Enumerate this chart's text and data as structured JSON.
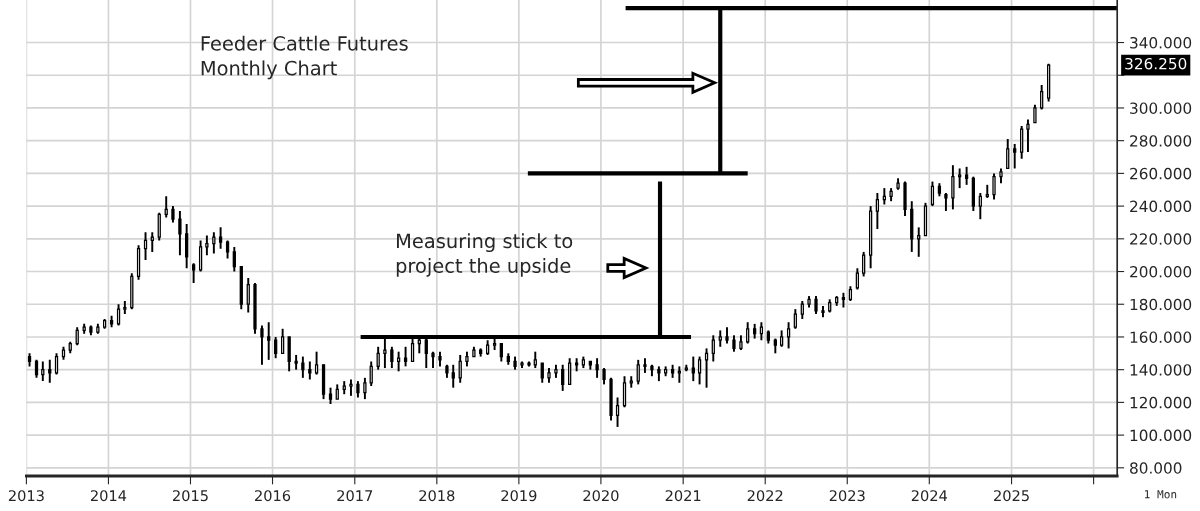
{
  "chart_data": {
    "type": "candlestick",
    "title": "Feeder Cattle Futures\nMonthly Chart",
    "color": "#000000",
    "x": [
      "2013-01-15",
      "2013-02-15",
      "2013-03-15",
      "2013-04-15",
      "2013-05-15",
      "2013-06-15",
      "2013-07-15",
      "2013-08-15",
      "2013-09-15",
      "2013-10-15",
      "2013-11-15",
      "2013-12-15",
      "2014-01-15",
      "2014-02-15",
      "2014-03-15",
      "2014-04-15",
      "2014-05-15",
      "2014-06-15",
      "2014-07-15",
      "2014-08-15",
      "2014-09-15",
      "2014-10-15",
      "2014-11-15",
      "2014-12-15",
      "2015-01-15",
      "2015-02-15",
      "2015-03-15",
      "2015-04-15",
      "2015-05-15",
      "2015-06-15",
      "2015-07-15",
      "2015-08-15",
      "2015-09-15",
      "2015-10-15",
      "2015-11-15",
      "2015-12-15",
      "2016-01-15",
      "2016-02-15",
      "2016-03-15",
      "2016-04-15",
      "2016-05-15",
      "2016-06-15",
      "2016-07-15",
      "2016-08-15",
      "2016-09-15",
      "2016-10-15",
      "2016-11-15",
      "2016-12-15",
      "2017-01-15",
      "2017-02-15",
      "2017-03-15",
      "2017-04-15",
      "2017-05-15",
      "2017-06-15",
      "2017-07-15",
      "2017-08-15",
      "2017-09-15",
      "2017-10-15",
      "2017-11-15",
      "2017-12-15",
      "2018-01-15",
      "2018-02-15",
      "2018-03-15",
      "2018-04-15",
      "2018-05-15",
      "2018-06-15",
      "2018-07-15",
      "2018-08-15",
      "2018-09-15",
      "2018-10-15",
      "2018-11-15",
      "2018-12-15",
      "2019-01-15",
      "2019-02-15",
      "2019-03-15",
      "2019-04-15",
      "2019-05-15",
      "2019-06-15",
      "2019-07-15",
      "2019-08-15",
      "2019-09-15",
      "2019-10-15",
      "2019-11-15",
      "2019-12-15",
      "2020-01-15",
      "2020-02-15",
      "2020-03-15",
      "2020-04-15",
      "2020-05-15",
      "2020-06-15",
      "2020-07-15",
      "2020-08-15",
      "2020-09-15",
      "2020-10-15",
      "2020-11-15",
      "2020-12-15",
      "2021-01-15",
      "2021-02-15",
      "2021-03-15",
      "2021-04-15",
      "2021-05-15",
      "2021-06-15",
      "2021-07-15",
      "2021-08-15",
      "2021-09-15",
      "2021-10-15",
      "2021-11-15",
      "2021-12-15",
      "2022-01-15",
      "2022-02-15",
      "2022-03-15",
      "2022-04-15",
      "2022-05-15",
      "2022-06-15",
      "2022-07-15",
      "2022-08-15",
      "2022-09-15",
      "2022-10-15",
      "2022-11-15",
      "2022-12-15",
      "2023-01-15",
      "2023-02-15",
      "2023-03-15",
      "2023-04-15",
      "2023-05-15",
      "2023-06-15",
      "2023-07-15",
      "2023-08-15",
      "2023-09-15",
      "2023-10-15",
      "2023-11-15",
      "2023-12-15",
      "2024-01-15",
      "2024-02-15",
      "2024-03-15",
      "2024-04-15",
      "2024-05-15",
      "2024-06-15",
      "2024-07-15",
      "2024-08-15",
      "2024-09-15",
      "2024-10-15",
      "2024-11-15",
      "2024-12-15",
      "2025-01-15",
      "2025-02-15",
      "2025-03-15",
      "2025-04-15",
      "2025-05-15",
      "2025-06-15"
    ],
    "ohlc": [
      [
        148,
        150,
        142,
        145
      ],
      [
        145,
        146,
        135,
        137
      ],
      [
        137,
        145,
        133,
        140
      ],
      [
        140,
        146,
        132,
        138
      ],
      [
        138,
        150,
        137,
        148
      ],
      [
        148,
        154,
        146,
        152
      ],
      [
        152,
        157,
        150,
        156
      ],
      [
        156,
        166,
        155,
        164
      ],
      [
        164,
        168,
        162,
        166
      ],
      [
        166,
        167,
        161,
        163
      ],
      [
        163,
        168,
        162,
        166
      ],
      [
        166,
        171,
        165,
        170
      ],
      [
        170,
        173,
        166,
        168
      ],
      [
        168,
        180,
        167,
        177
      ],
      [
        177,
        182,
        174,
        178
      ],
      [
        178,
        199,
        177,
        197
      ],
      [
        197,
        216,
        195,
        214
      ],
      [
        214,
        224,
        207,
        219
      ],
      [
        219,
        224,
        212,
        221
      ],
      [
        221,
        236,
        219,
        235
      ],
      [
        235,
        246,
        233,
        238
      ],
      [
        238,
        240,
        230,
        232
      ],
      [
        232,
        237,
        210,
        223
      ],
      [
        223,
        229,
        202,
        209
      ],
      [
        204,
        205,
        193,
        201
      ],
      [
        201,
        219,
        200,
        215
      ],
      [
        215,
        222,
        210,
        217
      ],
      [
        217,
        224,
        211,
        221
      ],
      [
        221,
        227,
        214,
        218
      ],
      [
        218,
        219,
        208,
        212
      ],
      [
        212,
        215,
        200,
        203
      ],
      [
        203,
        203,
        177,
        180
      ],
      [
        180,
        196,
        175,
        192
      ],
      [
        192,
        193,
        162,
        165
      ],
      [
        165,
        167,
        143,
        160
      ],
      [
        160,
        169,
        146,
        158
      ],
      [
        158,
        160,
        147,
        150
      ],
      [
        150,
        165,
        150,
        160
      ],
      [
        160,
        160,
        139,
        145
      ],
      [
        145,
        149,
        140,
        144
      ],
      [
        144,
        148,
        135,
        140
      ],
      [
        140,
        145,
        134,
        138
      ],
      [
        138,
        151,
        137,
        143
      ],
      [
        143,
        143,
        122,
        125
      ],
      [
        125,
        129,
        119,
        122
      ],
      [
        122,
        131,
        122,
        128
      ],
      [
        128,
        133,
        125,
        130
      ],
      [
        130,
        134,
        124,
        131
      ],
      [
        131,
        133,
        123,
        126
      ],
      [
        126,
        135,
        122,
        132
      ],
      [
        132,
        145,
        130,
        142
      ],
      [
        142,
        154,
        140,
        150
      ],
      [
        150,
        159,
        141,
        152
      ],
      [
        152,
        154,
        141,
        145
      ],
      [
        145,
        151,
        139,
        147
      ],
      [
        147,
        154,
        142,
        145
      ],
      [
        145,
        159,
        145,
        156
      ],
      [
        156,
        160,
        150,
        158
      ],
      [
        158,
        159,
        141,
        150
      ],
      [
        150,
        151,
        141,
        148
      ],
      [
        148,
        151,
        142,
        146
      ],
      [
        142,
        143,
        135,
        138
      ],
      [
        138,
        143,
        129,
        135
      ],
      [
        135,
        149,
        132,
        145
      ],
      [
        145,
        151,
        142,
        148
      ],
      [
        148,
        154,
        148,
        152
      ],
      [
        152,
        153,
        148,
        150
      ],
      [
        150,
        158,
        149,
        155
      ],
      [
        155,
        159,
        152,
        156
      ],
      [
        156,
        156,
        145,
        148
      ],
      [
        148,
        150,
        143,
        145
      ],
      [
        145,
        148,
        140,
        142
      ],
      [
        143,
        145,
        141,
        144
      ],
      [
        144,
        145,
        142,
        143
      ],
      [
        143,
        151,
        141,
        146
      ],
      [
        144,
        144,
        132,
        135
      ],
      [
        135,
        141,
        132,
        138
      ],
      [
        138,
        143,
        135,
        140
      ],
      [
        140,
        143,
        127,
        131
      ],
      [
        131,
        147,
        131,
        144
      ],
      [
        144,
        147,
        139,
        143
      ],
      [
        143,
        148,
        141,
        146
      ],
      [
        145,
        145,
        140,
        143
      ],
      [
        143,
        147,
        135,
        140
      ],
      [
        140,
        141,
        131,
        134
      ],
      [
        134,
        135,
        109,
        112
      ],
      [
        112,
        123,
        105,
        118
      ],
      [
        118,
        136,
        117,
        132
      ],
      [
        132,
        136,
        129,
        133
      ],
      [
        133,
        146,
        131,
        143
      ],
      [
        143,
        147,
        138,
        142
      ],
      [
        142,
        143,
        136,
        140
      ],
      [
        140,
        142,
        133,
        138
      ],
      [
        138,
        142,
        136,
        140
      ],
      [
        140,
        143,
        135,
        138
      ],
      [
        138,
        142,
        132,
        139
      ],
      [
        140,
        143,
        139,
        141
      ],
      [
        141,
        148,
        133,
        138
      ],
      [
        138,
        148,
        131,
        146
      ],
      [
        146,
        153,
        129,
        150
      ],
      [
        150,
        161,
        145,
        158
      ],
      [
        158,
        164,
        154,
        160
      ],
      [
        160,
        166,
        156,
        158
      ],
      [
        158,
        161,
        151,
        153
      ],
      [
        153,
        161,
        152,
        157
      ],
      [
        157,
        169,
        156,
        165
      ],
      [
        165,
        168,
        159,
        162
      ],
      [
        162,
        169,
        158,
        166
      ],
      [
        163,
        164,
        156,
        158
      ],
      [
        158,
        159,
        150,
        155
      ],
      [
        155,
        164,
        154,
        160
      ],
      [
        160,
        169,
        153,
        165
      ],
      [
        166,
        177,
        165,
        174
      ],
      [
        174,
        182,
        171,
        180
      ],
      [
        180,
        185,
        178,
        183
      ],
      [
        183,
        185,
        174,
        176
      ],
      [
        176,
        179,
        172,
        175
      ],
      [
        176,
        183,
        175,
        181
      ],
      [
        181,
        185,
        179,
        184
      ],
      [
        184,
        187,
        178,
        183
      ],
      [
        183,
        191,
        182,
        189
      ],
      [
        190,
        202,
        189,
        199
      ],
      [
        199,
        212,
        197,
        210
      ],
      [
        210,
        240,
        202,
        237
      ],
      [
        237,
        248,
        226,
        244
      ],
      [
        244,
        251,
        241,
        246
      ],
      [
        246,
        251,
        243,
        249
      ],
      [
        251,
        257,
        250,
        254
      ],
      [
        254,
        255,
        234,
        238
      ],
      [
        238,
        243,
        212,
        220
      ],
      [
        220,
        227,
        209,
        222
      ],
      [
        222,
        242,
        222,
        240
      ],
      [
        241,
        255,
        240,
        252
      ],
      [
        252,
        254,
        246,
        248
      ],
      [
        247,
        248,
        237,
        245
      ],
      [
        245,
        265,
        238,
        258
      ],
      [
        258,
        263,
        251,
        259
      ],
      [
        259,
        264,
        253,
        257
      ],
      [
        257,
        258,
        237,
        240
      ],
      [
        240,
        248,
        232,
        246
      ],
      [
        246,
        253,
        245,
        247
      ],
      [
        247,
        260,
        244,
        258
      ],
      [
        258,
        263,
        254,
        261
      ],
      [
        263,
        281,
        263,
        275
      ],
      [
        275,
        278,
        263,
        273
      ],
      [
        273,
        289,
        269,
        287
      ],
      [
        287,
        293,
        273,
        290
      ],
      [
        291,
        302,
        291,
        300
      ],
      [
        300,
        314,
        299,
        310
      ],
      [
        306,
        327,
        304,
        326.25
      ]
    ],
    "series": [
      {
        "type": "line",
        "x": [
          "2017-01-27",
          "2021-02-05"
        ],
        "values": [
          160,
          160
        ],
        "color": "#000000"
      },
      {
        "type": "line",
        "x": [
          "2020-09-20",
          "2020-09-20"
        ],
        "values": [
          160,
          255
        ],
        "color": "#000000"
      },
      {
        "type": "line",
        "x": [
          "2019-02-10",
          "2021-10-15"
        ],
        "values": [
          260,
          260
        ],
        "color": "#000000"
      },
      {
        "type": "line",
        "x": [
          "2021-06-15",
          "2021-06-15"
        ],
        "values": [
          260,
          361
        ],
        "color": "#000000"
      },
      {
        "type": "line",
        "x": [
          "2020-04-20",
          "2026-04-16"
        ],
        "values": [
          361,
          361
        ],
        "color": "#000000"
      }
    ],
    "xlim": [
      "2013-01-01",
      "2026-04-16"
    ],
    "xticks": [
      {
        "value": "2013",
        "label": "2013"
      },
      {
        "value": "2014",
        "label": "2014"
      },
      {
        "value": "2015",
        "label": "2015"
      },
      {
        "value": "2016",
        "label": "2016"
      },
      {
        "value": "2017",
        "label": "2017"
      },
      {
        "value": "2018",
        "label": "2018"
      },
      {
        "value": "2019",
        "label": "2019"
      },
      {
        "value": "2020",
        "label": "2020"
      },
      {
        "value": "2021",
        "label": "2021"
      },
      {
        "value": "2022",
        "label": "2022"
      },
      {
        "value": "2023",
        "label": "2023"
      },
      {
        "value": "2024",
        "label": "2024"
      },
      {
        "value": "2025",
        "label": "2025"
      },
      {
        "value": "2026",
        "label": null
      }
    ],
    "ylim": [
      75,
      366
    ],
    "yticks": [
      {
        "value": 80,
        "label": "80.000"
      },
      {
        "value": 100,
        "label": "100.000"
      },
      {
        "value": 120,
        "label": "120.000"
      },
      {
        "value": 140,
        "label": "140.000"
      },
      {
        "value": 160,
        "label": "160.000"
      },
      {
        "value": 180,
        "label": "180.000"
      },
      {
        "value": 200,
        "label": "200.000"
      },
      {
        "value": 220,
        "label": "220.000"
      },
      {
        "value": 240,
        "label": "240.000"
      },
      {
        "value": 260,
        "label": "260.000"
      },
      {
        "value": 280,
        "label": "280.000"
      },
      {
        "value": 300,
        "label": "300.000"
      },
      {
        "value": 320,
        "label": null
      },
      {
        "value": 340,
        "label": "340.000"
      }
    ],
    "grid": true,
    "annotations": [
      "Measuring stick to\nproject the upside",
      "326.250",
      "1 Mon"
    ]
  }
}
